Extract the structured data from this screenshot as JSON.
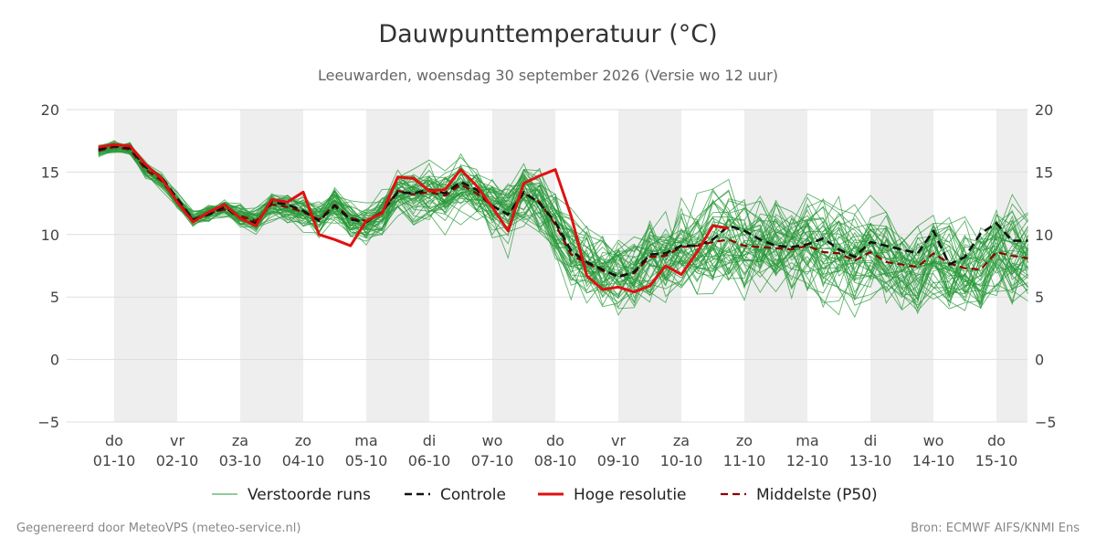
{
  "chart_data": {
    "type": "line",
    "title": "Dauwpunttemperatuur (°C)",
    "subtitle": "Leeuwarden, woensdag 30 september 2026 (Versie wo 12 uur)",
    "ylim": [
      -5,
      20
    ],
    "yticks": [
      -5,
      0,
      5,
      10,
      15,
      20
    ],
    "ytick_labels": [
      "−5",
      "0",
      "5",
      "10",
      "15",
      "20"
    ],
    "x_unit": "dagen vanaf 01-10 00 uur",
    "xlim": [
      -0.25,
      14.5
    ],
    "x_ticks": [
      {
        "day": "do",
        "date": "01-10"
      },
      {
        "day": "vr",
        "date": "02-10"
      },
      {
        "day": "za",
        "date": "03-10"
      },
      {
        "day": "zo",
        "date": "04-10"
      },
      {
        "day": "ma",
        "date": "05-10"
      },
      {
        "day": "di",
        "date": "06-10"
      },
      {
        "day": "wo",
        "date": "07-10"
      },
      {
        "day": "do",
        "date": "08-10"
      },
      {
        "day": "vr",
        "date": "09-10"
      },
      {
        "day": "za",
        "date": "10-10"
      },
      {
        "day": "zo",
        "date": "11-10"
      },
      {
        "day": "ma",
        "date": "12-10"
      },
      {
        "day": "di",
        "date": "13-10"
      },
      {
        "day": "wo",
        "date": "14-10"
      },
      {
        "day": "do",
        "date": "15-10"
      }
    ],
    "night_bands": [
      [
        0,
        1
      ],
      [
        2,
        3
      ],
      [
        4,
        5
      ],
      [
        6,
        7
      ],
      [
        8,
        9
      ],
      [
        10,
        11
      ],
      [
        12,
        13
      ],
      [
        14,
        14.5
      ]
    ],
    "grid": true,
    "legend_position": "bottom",
    "colors": {
      "members": "#2a9a3a",
      "controle": "#111111",
      "hoge_resolutie": "#e01010",
      "middelste": "#8b0000",
      "night_band": "#eeeeee",
      "grid": "#dddddd"
    },
    "series": [
      {
        "name": "Controle",
        "style": "dashed-black",
        "x": [
          -0.25,
          0,
          0.25,
          0.5,
          0.75,
          1,
          1.25,
          1.5,
          1.75,
          2,
          2.25,
          2.5,
          2.75,
          3,
          3.25,
          3.5,
          3.75,
          4,
          4.25,
          4.5,
          4.75,
          5,
          5.25,
          5.5,
          5.75,
          6,
          6.25,
          6.5,
          6.75,
          7,
          7.25,
          7.5,
          7.75,
          8,
          8.25,
          8.5,
          8.75,
          9,
          9.25,
          9.5,
          9.75,
          10,
          10.25,
          10.5,
          10.75,
          11,
          11.25,
          11.5,
          11.75,
          12,
          12.25,
          12.5,
          12.75,
          13,
          13.25,
          13.5,
          13.75,
          14,
          14.25,
          14.5
        ],
        "values": [
          16.8,
          17.1,
          16.9,
          15.4,
          14.6,
          12.9,
          11.2,
          11.6,
          12.2,
          11.3,
          10.9,
          12.6,
          12.4,
          11.9,
          11.1,
          12.3,
          11.2,
          11.0,
          11.8,
          13.4,
          13.3,
          13.6,
          13.3,
          14.2,
          13.6,
          12.3,
          11.6,
          13.4,
          12.5,
          11.0,
          8.7,
          7.8,
          7.2,
          6.6,
          7.0,
          8.4,
          8.5,
          9.1,
          9.1,
          9.6,
          10.7,
          10.3,
          9.6,
          9.1,
          9.0,
          9.2,
          9.7,
          8.8,
          8.2,
          9.4,
          9.1,
          8.8,
          8.5,
          10.3,
          7.6,
          8.2,
          10.1,
          10.9,
          9.5,
          9.5
        ]
      },
      {
        "name": "Hoge resolutie",
        "style": "solid-red",
        "x": [
          -0.25,
          0,
          0.25,
          0.5,
          0.75,
          1,
          1.25,
          1.5,
          1.75,
          2,
          2.25,
          2.5,
          2.75,
          3,
          3.25,
          3.5,
          3.75,
          4,
          4.25,
          4.5,
          4.75,
          5,
          5.25,
          5.5,
          5.75,
          6,
          6.25,
          6.5,
          6.75,
          7,
          7.25,
          7.5,
          7.75,
          8,
          8.25,
          8.5,
          8.75,
          9,
          9.25,
          9.5,
          9.75
        ],
        "values": [
          17.0,
          17.2,
          17.1,
          15.6,
          14.5,
          12.6,
          11.0,
          11.8,
          12.4,
          11.3,
          10.7,
          12.8,
          12.6,
          13.4,
          10.0,
          9.6,
          9.1,
          11.1,
          11.7,
          14.6,
          14.5,
          13.5,
          13.6,
          15.2,
          13.9,
          12.2,
          10.3,
          14.1,
          14.7,
          15.2,
          11.5,
          6.7,
          5.6,
          5.8,
          5.4,
          5.9,
          7.5,
          6.8,
          8.6,
          10.7,
          10.5
        ]
      },
      {
        "name": "Middelste (P50)",
        "style": "dashed-darkred",
        "x": [
          -0.25,
          0,
          0.25,
          0.5,
          0.75,
          1,
          1.25,
          1.5,
          1.75,
          2,
          2.25,
          2.5,
          2.75,
          3,
          3.25,
          3.5,
          3.75,
          4,
          4.25,
          4.5,
          4.75,
          5,
          5.25,
          5.5,
          5.75,
          6,
          6.25,
          6.5,
          6.75,
          7,
          7.25,
          7.5,
          7.75,
          8,
          8.25,
          8.5,
          8.75,
          9,
          9.25,
          9.5,
          9.75,
          10,
          10.25,
          10.5,
          10.75,
          11,
          11.25,
          11.5,
          11.75,
          12,
          12.25,
          12.5,
          12.75,
          13,
          13.25,
          13.5,
          13.75,
          14,
          14.25,
          14.5
        ],
        "values": [
          16.7,
          17.0,
          16.8,
          15.2,
          14.3,
          12.7,
          11.2,
          11.7,
          12.0,
          11.5,
          11.1,
          12.4,
          12.2,
          11.8,
          11.2,
          12.4,
          11.3,
          11.1,
          11.8,
          13.5,
          13.2,
          13.4,
          13.1,
          14.0,
          13.3,
          12.3,
          11.6,
          13.3,
          12.6,
          10.8,
          8.4,
          7.7,
          7.1,
          6.7,
          6.9,
          8.2,
          8.3,
          9.0,
          9.1,
          9.4,
          9.6,
          9.1,
          9.0,
          8.9,
          8.8,
          9.1,
          8.6,
          8.5,
          7.9,
          8.6,
          7.8,
          7.6,
          7.4,
          8.5,
          7.7,
          7.3,
          7.2,
          8.6,
          8.3,
          8.1
        ]
      }
    ],
    "ensemble_members": {
      "name": "Verstoorde runs",
      "count": 50,
      "range": [
        -0.4,
        17.6
      ]
    }
  },
  "legend": [
    {
      "label": "Verstoorde runs",
      "style": "thin-green"
    },
    {
      "label": "Controle",
      "style": "dashed-black"
    },
    {
      "label": "Hoge resolutie",
      "style": "solid-red"
    },
    {
      "label": "Middelste (P50)",
      "style": "dashed-darkred"
    }
  ],
  "footer": {
    "left": "Gegenereerd door MeteoVPS (meteo-service.nl)",
    "right": "Bron: ECMWF AIFS/KNMI Ens"
  }
}
